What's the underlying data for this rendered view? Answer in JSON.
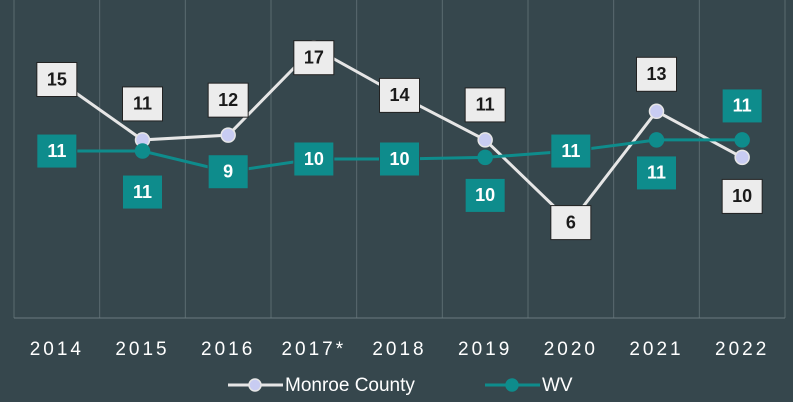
{
  "chart_data": {
    "type": "line",
    "categories": [
      "2014",
      "2015",
      "2016",
      "2017*",
      "2018",
      "2019",
      "2020",
      "2021",
      "2022"
    ],
    "series": [
      {
        "name": "Monroe County",
        "color": "#e6e6e6",
        "marker_color": "#c8ccf2",
        "values": [
          15,
          11.2,
          11.5,
          17,
          14,
          11.2,
          6,
          13,
          10.1
        ],
        "value_labels": [
          "15",
          "11",
          "12",
          "17",
          "14",
          "11",
          "6",
          "13",
          "10"
        ]
      },
      {
        "name": "WV",
        "color": "#0e8c8c",
        "marker_color": "#0e8c8c",
        "values": [
          10.5,
          10.5,
          9.2,
          10,
          10,
          10.1,
          10.5,
          11.2,
          11.2
        ],
        "value_labels": [
          "11",
          "11",
          "9",
          "10",
          "10",
          "10",
          "11",
          "11",
          "11"
        ]
      }
    ],
    "ylim": [
      0,
      20
    ],
    "legend": "bottom"
  }
}
